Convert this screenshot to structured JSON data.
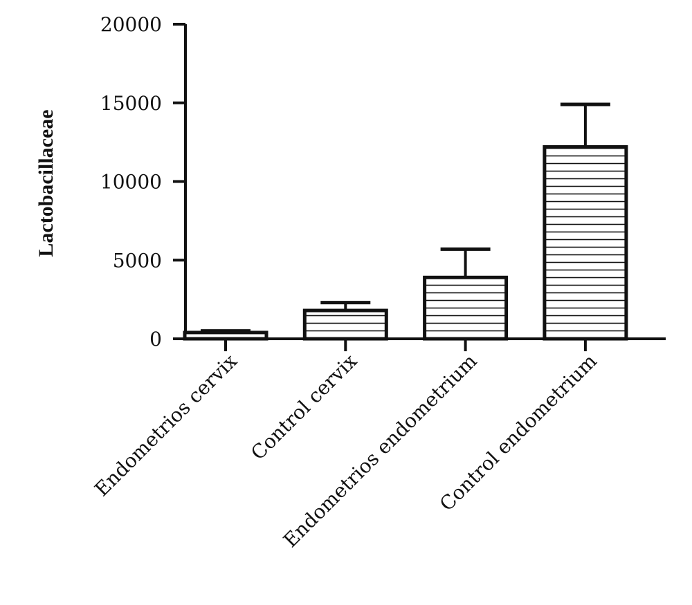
{
  "chart_data": {
    "type": "bar",
    "title": "",
    "xlabel": "",
    "ylabel": "Lactobacillaceae",
    "ylim": [
      0,
      20000
    ],
    "yticks": [
      0,
      5000,
      10000,
      15000,
      20000
    ],
    "ytick_labels": [
      "0",
      "5000",
      "10000",
      "15000",
      "20000"
    ],
    "categories": [
      "Endometrios cervix",
      "Control cervix",
      "Endometrios endometrium",
      "Control endometrium"
    ],
    "values": [
      400,
      1800,
      3900,
      12200
    ],
    "error_upper": [
      500,
      2300,
      5700,
      14900
    ],
    "bar_fill": "horizontal-stripes",
    "grid": false,
    "colors": {
      "stroke": "#111111",
      "fill": "#ffffff"
    }
  }
}
